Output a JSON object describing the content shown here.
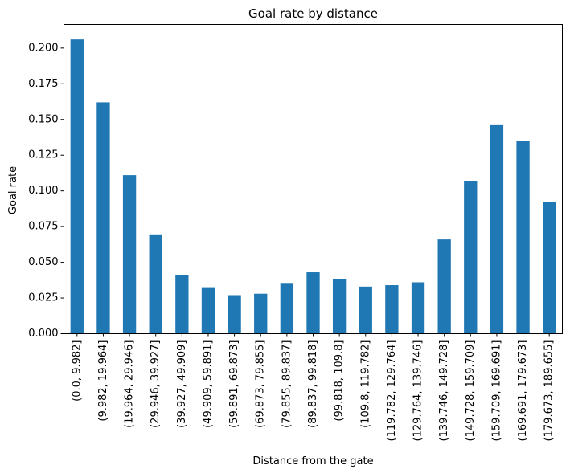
{
  "chart_data": {
    "type": "bar",
    "title": "Goal rate by distance",
    "xlabel": "Distance from the gate",
    "ylabel": "Goal rate",
    "ylim": [
      0,
      0.2165
    ],
    "yticks": [
      "0.000",
      "0.025",
      "0.050",
      "0.075",
      "0.100",
      "0.125",
      "0.150",
      "0.175",
      "0.200"
    ],
    "grid": false,
    "legend": "none",
    "bar_color": "#1f77b4",
    "categories": [
      "(0.0, 9.982]",
      "(9.982, 19.964]",
      "(19.964, 29.946]",
      "(29.946, 39.927]",
      "(39.927, 49.909]",
      "(49.909, 59.891]",
      "(59.891, 69.873]",
      "(69.873, 79.855]",
      "(79.855, 89.837]",
      "(89.837, 99.818]",
      "(99.818, 109.8]",
      "(109.8, 119.782]",
      "(119.782, 129.764]",
      "(129.764, 139.746]",
      "(139.746, 149.728]",
      "(149.728, 159.709]",
      "(159.709, 169.691]",
      "(169.691, 179.673]",
      "(179.673, 189.655]"
    ],
    "values": [
      0.206,
      0.162,
      0.111,
      0.069,
      0.041,
      0.032,
      0.027,
      0.028,
      0.035,
      0.043,
      0.038,
      0.033,
      0.034,
      0.036,
      0.066,
      0.107,
      0.146,
      0.135,
      0.092
    ]
  }
}
